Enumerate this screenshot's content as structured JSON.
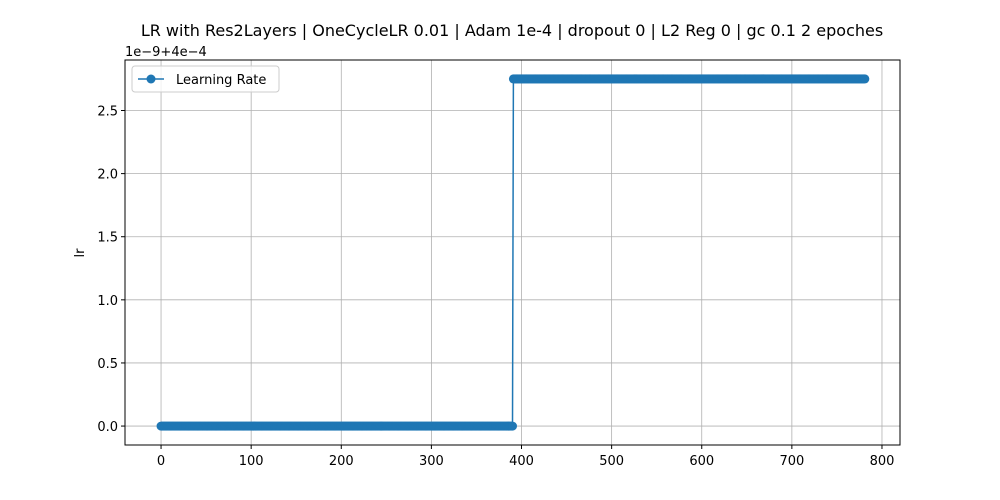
{
  "chart_data": {
    "type": "line",
    "title": "LR with Res2Layers | OneCycleLR 0.01 | Adam 1e-4 | dropout 0 | L2 Reg 0 | gc 0.1 2 epoches",
    "xlabel": "",
    "ylabel": "lr",
    "offset_text": "1e−9+4e−4",
    "xlim": [
      -40,
      820
    ],
    "ylim": [
      -0.15,
      2.9
    ],
    "xticks": [
      0,
      100,
      200,
      300,
      400,
      500,
      600,
      700,
      800
    ],
    "yticks": [
      0.0,
      0.5,
      1.0,
      1.5,
      2.0,
      2.5
    ],
    "ytick_labels": [
      "0.0",
      "0.5",
      "1.0",
      "1.5",
      "2.0",
      "2.5"
    ],
    "grid": true,
    "legend_position": "upper-left",
    "series": [
      {
        "name": "Learning Rate",
        "color": "#1f77b4",
        "marker": "circle",
        "segments": [
          {
            "x_start": 0,
            "x_end": 390,
            "value": 0.0
          },
          {
            "x_start": 391,
            "x_end": 781,
            "value": 2.75
          }
        ]
      }
    ]
  }
}
